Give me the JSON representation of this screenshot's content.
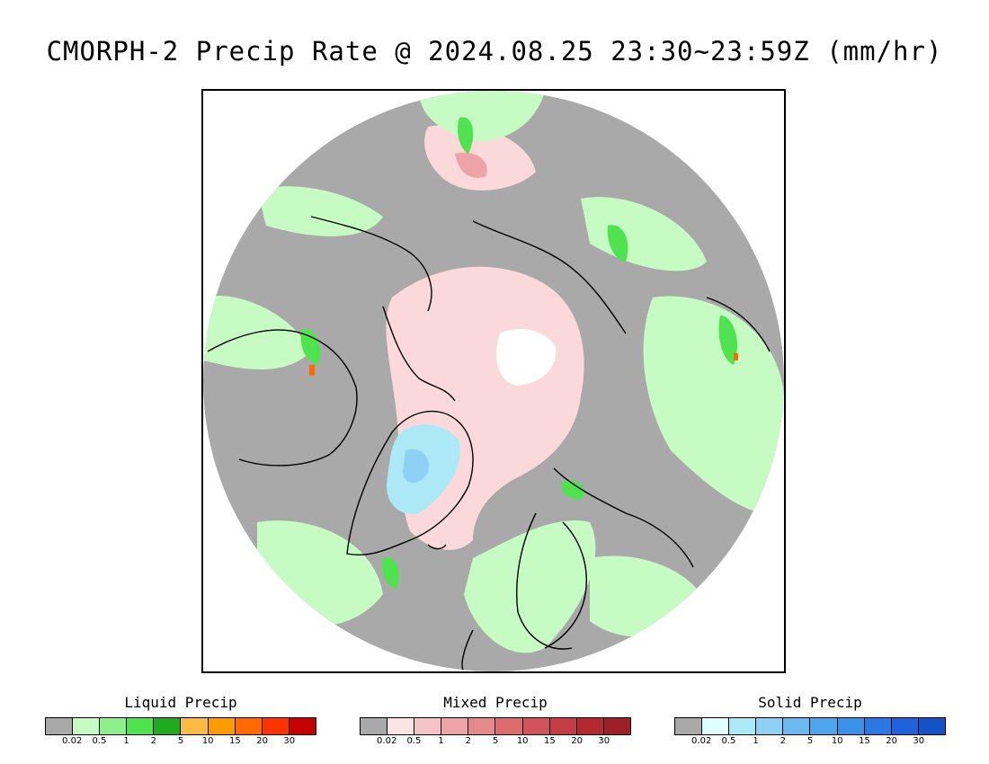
{
  "title": "CMORPH-2 Precip Rate @ 2024.08.25 23:30~23:59Z (mm/hr)",
  "map": {
    "projection": "north-polar-stereographic",
    "background_color": "#a9a9a9",
    "land_outline_color": "#000000"
  },
  "legends": [
    {
      "id": "liquid",
      "title": "Liquid Precip",
      "colors": [
        "#a9a9a9",
        "#c6fbc3",
        "#8ef08a",
        "#4fe350",
        "#1fab1f",
        "#fcb944",
        "#fc9c00",
        "#ff6a00",
        "#ff3300",
        "#c40000"
      ],
      "ticks": [
        "0.02",
        "0.5",
        "1",
        "2",
        "5",
        "10",
        "15",
        "20",
        "30"
      ]
    },
    {
      "id": "mixed",
      "title": "Mixed Precip",
      "colors": [
        "#a9a9a9",
        "#fde3e4",
        "#f7c3c6",
        "#eea3a6",
        "#e6898c",
        "#dd6b70",
        "#d2545b",
        "#c43d44",
        "#b12a31",
        "#9e1f25"
      ],
      "ticks": [
        "0.02",
        "0.5",
        "1",
        "2",
        "5",
        "10",
        "15",
        "20",
        "30"
      ]
    },
    {
      "id": "solid",
      "title": "Solid Precip",
      "colors": [
        "#a9a9a9",
        "#e0ffff",
        "#ace9f6",
        "#8fd0f5",
        "#6cb9f2",
        "#4ea6ee",
        "#3b90e8",
        "#2b78e2",
        "#1e63dc",
        "#1452c8"
      ],
      "ticks": [
        "0.02",
        "0.5",
        "1",
        "2",
        "5",
        "10",
        "15",
        "20",
        "30"
      ]
    }
  ]
}
